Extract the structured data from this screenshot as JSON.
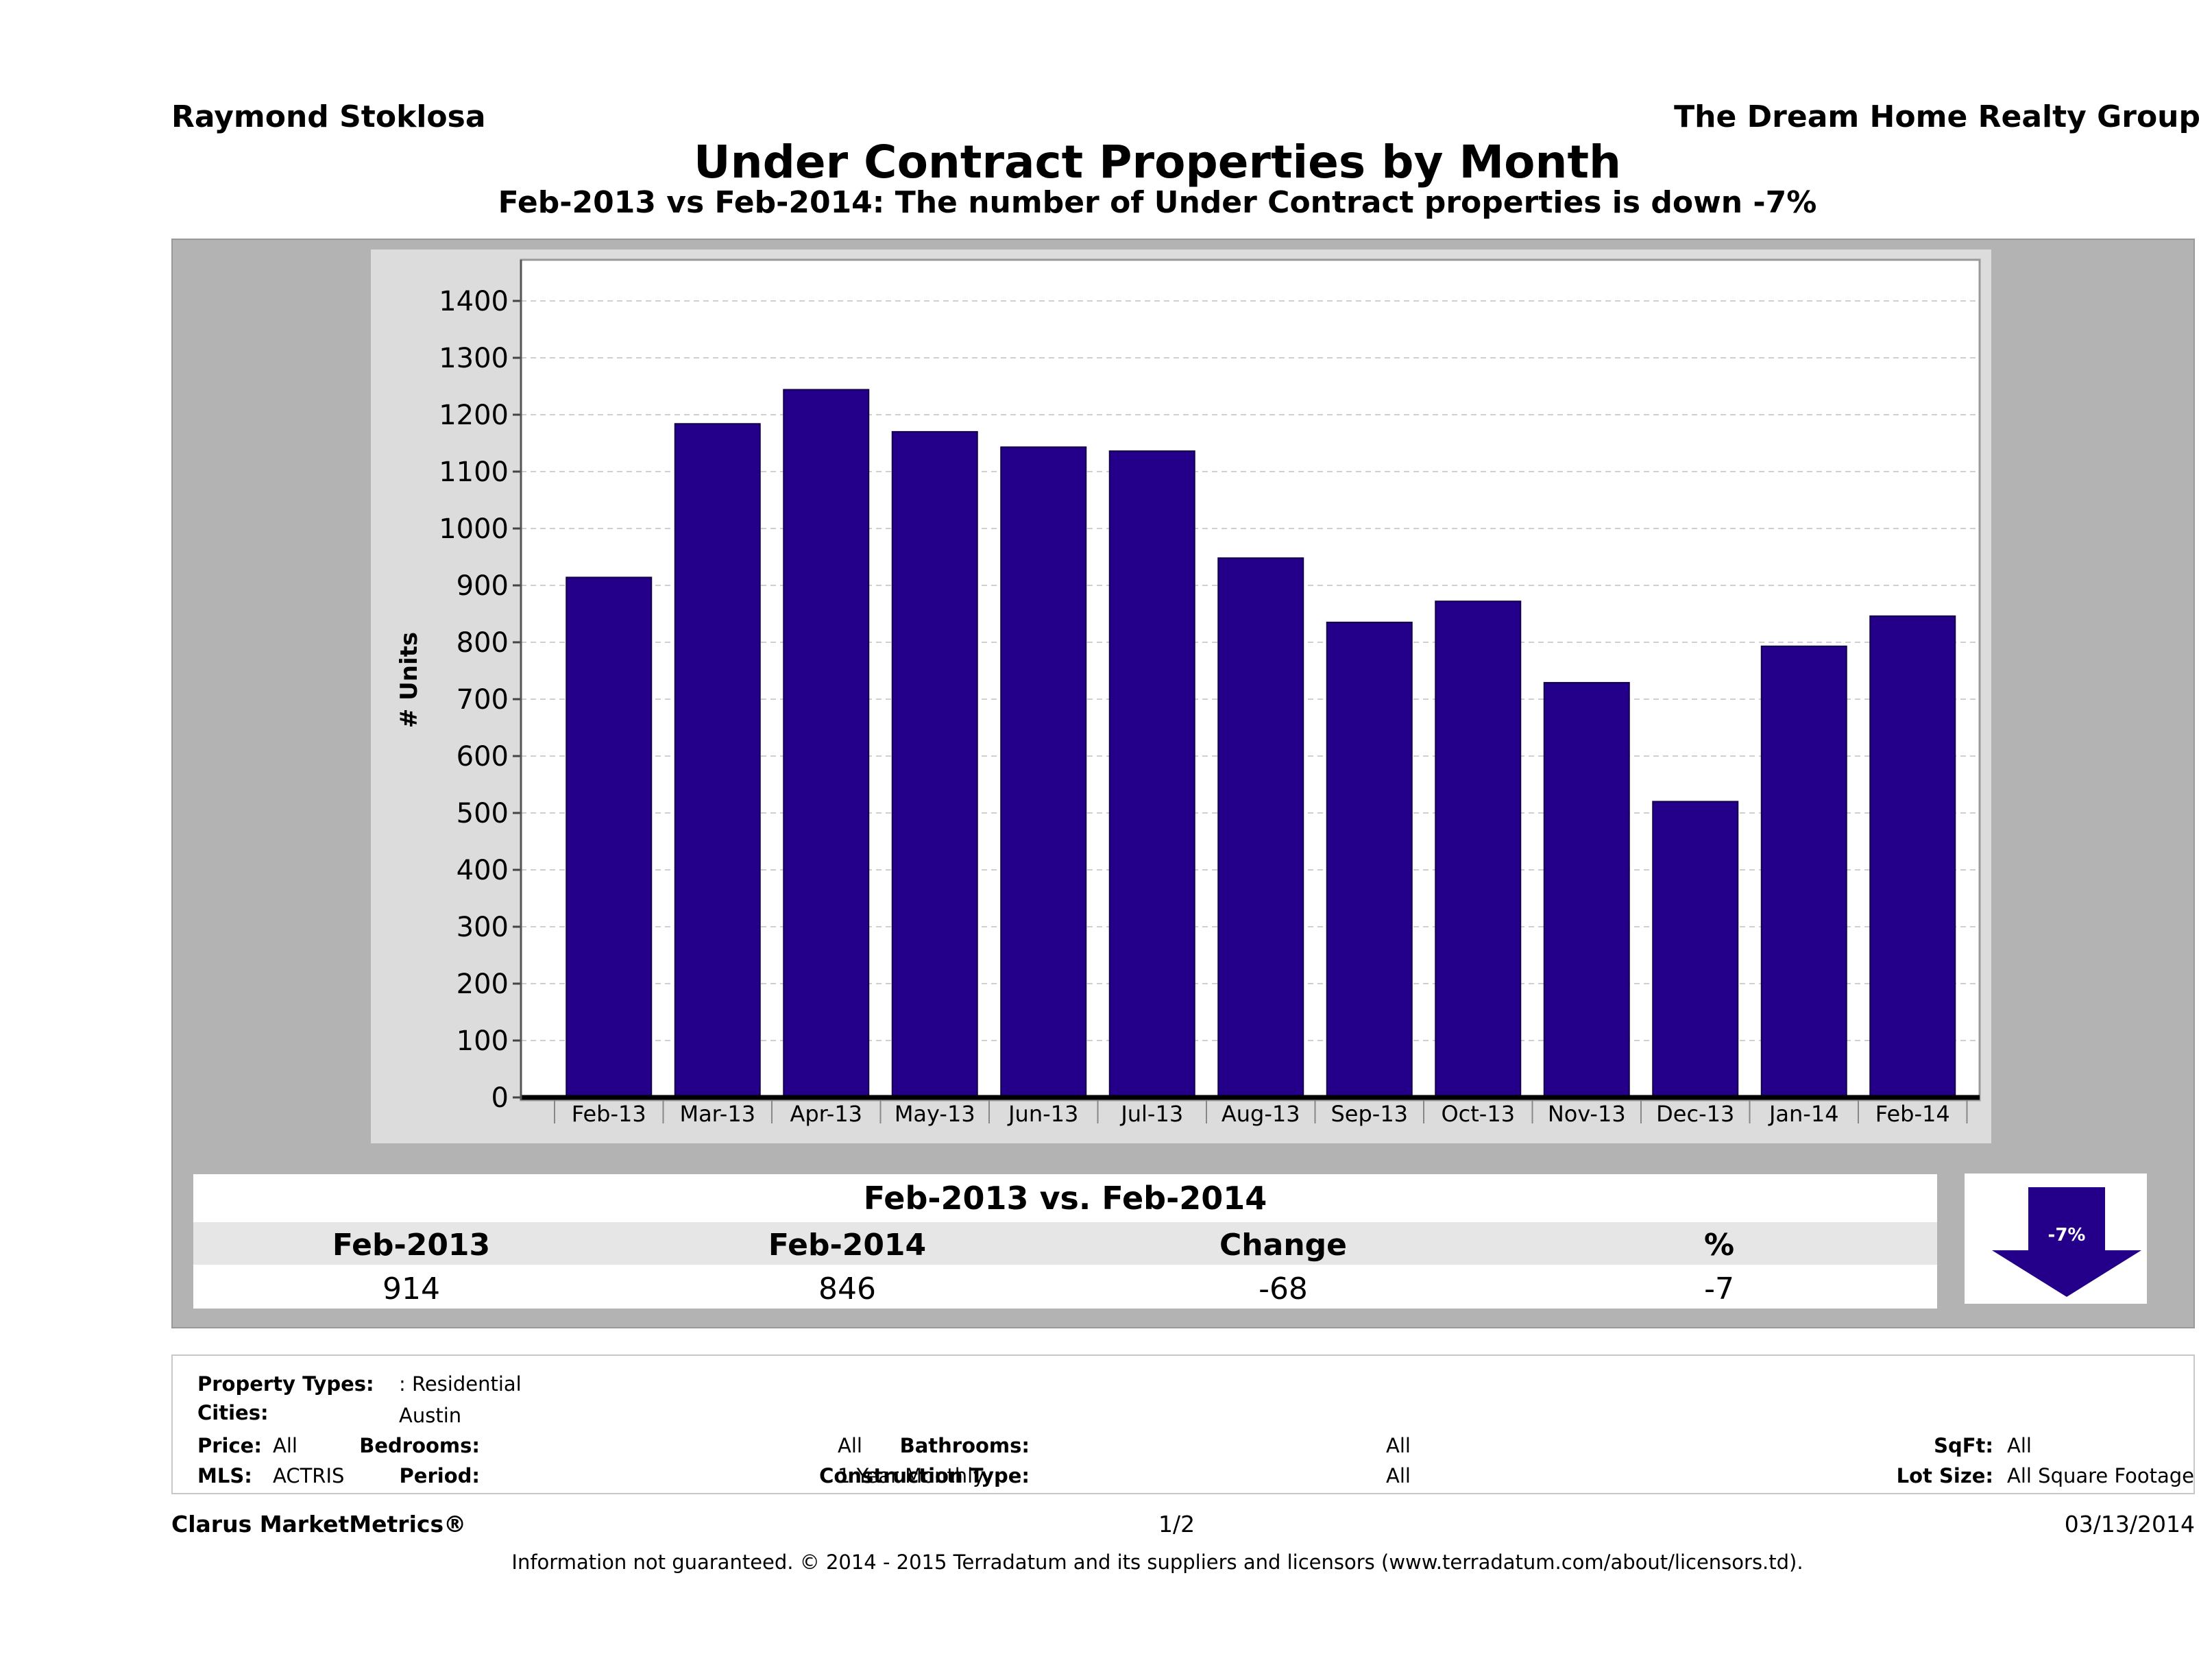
{
  "header": {
    "agent_name": "Raymond Stoklosa",
    "company_name": "The Dream Home Realty Group",
    "title": "Under Contract Properties by Month",
    "subtitle": "Feb-2013 vs Feb-2014: The number of Under Contract  properties is down -7%"
  },
  "chart_data": {
    "type": "bar",
    "title": "Under Contract Properties by Month",
    "xlabel": "",
    "ylabel": "# Units",
    "categories": [
      "Feb-13",
      "Mar-13",
      "Apr-13",
      "May-13",
      "Jun-13",
      "Jul-13",
      "Aug-13",
      "Sep-13",
      "Oct-13",
      "Nov-13",
      "Dec-13",
      "Jan-14",
      "Feb-14"
    ],
    "values": [
      914,
      1184,
      1244,
      1170,
      1143,
      1136,
      948,
      835,
      872,
      729,
      520,
      793,
      846
    ],
    "ylim": [
      0,
      1400
    ],
    "yticks": [
      0,
      100,
      200,
      300,
      400,
      500,
      600,
      700,
      800,
      900,
      1000,
      1100,
      1200,
      1300,
      1400
    ],
    "grid": true,
    "bar_color": "#24008a"
  },
  "comparison": {
    "title": "Feb-2013 vs. Feb-2014",
    "headers": [
      "Feb-2013",
      "Feb-2014",
      "Change",
      "%"
    ],
    "values": [
      "914",
      "846",
      "-68",
      "-7"
    ],
    "badge": "-7%",
    "badge_icon": "down-arrow-icon",
    "badge_color": "#24008a"
  },
  "criteria": {
    "property_types_label": "Property Types:",
    "property_types_value": ": Residential",
    "cities_label": "Cities:",
    "cities_value": "Austin",
    "price_label": "Price:",
    "price_value": "All",
    "mls_label": "MLS:",
    "mls_value": "ACTRIS",
    "bedrooms_label": "Bedrooms:",
    "bedrooms_value": "All",
    "period_label": "Period:",
    "period_value": "1 Year Monthly",
    "bathrooms_label": "Bathrooms:",
    "bathrooms_value": "All",
    "construction_label": "Construction Type:",
    "construction_value": "All",
    "sqft_label": "SqFt:",
    "sqft_value": "All",
    "lot_label": "Lot Size:",
    "lot_value": "All Square Footage"
  },
  "footer": {
    "brand": "Clarus MarketMetrics®",
    "page": "1/2",
    "date": "03/13/2014",
    "disclaimer": "Information not guaranteed. © 2014 - 2015 Terradatum and its suppliers and licensors (www.terradatum.com/about/licensors.td)."
  }
}
